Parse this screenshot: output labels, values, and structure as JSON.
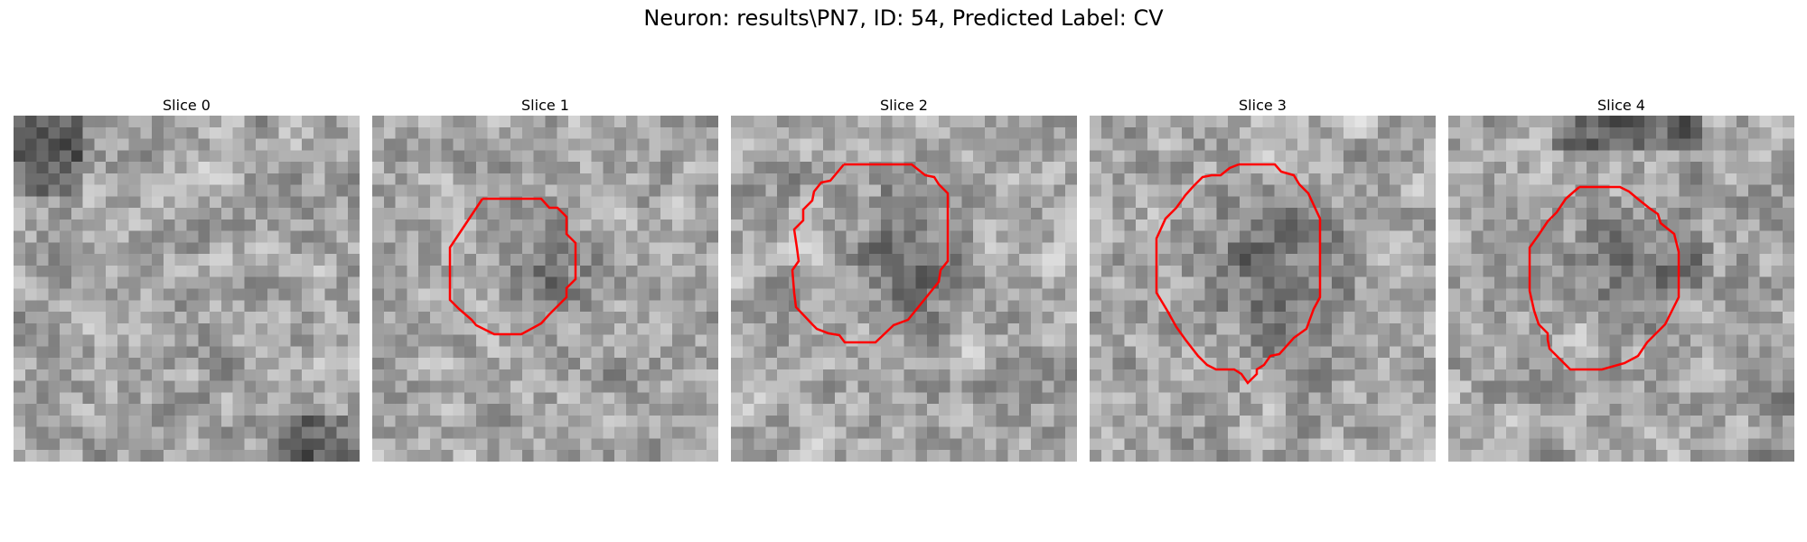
{
  "figure": {
    "title": "Neuron: results\\PN7, ID: 54, Predicted Label: CV"
  },
  "panels": [
    {
      "title": "Slice 0",
      "contour": false
    },
    {
      "title": "Slice 1",
      "contour": true
    },
    {
      "title": "Slice 2",
      "contour": true
    },
    {
      "title": "Slice 3",
      "contour": true
    },
    {
      "title": "Slice 4",
      "contour": true
    }
  ],
  "colors": {
    "contour": "#ff0000",
    "background": "#ffffff"
  }
}
